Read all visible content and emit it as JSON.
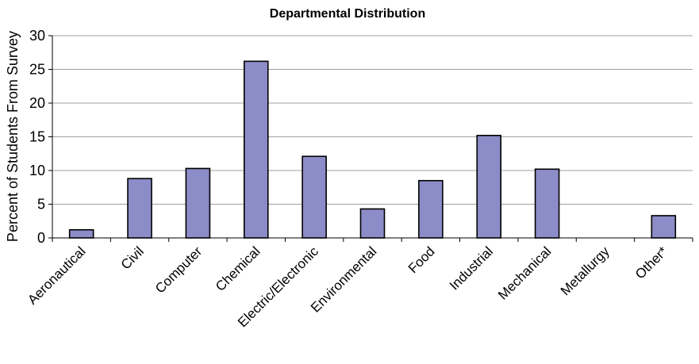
{
  "chart_data": {
    "type": "bar",
    "title": "Departmental Distribution",
    "xlabel": "",
    "ylabel": "Percent  of  Students From Survey",
    "categories": [
      "Aeronautical",
      "Civil",
      "Computer",
      "Chemical",
      "Electric/Electronic",
      "Environmental",
      "Food",
      "Industrial",
      "Mechanical",
      "Metallurgy",
      "Other*"
    ],
    "values": [
      1.2,
      8.8,
      10.3,
      26.2,
      12.1,
      4.3,
      8.5,
      15.2,
      10.2,
      0,
      3.3
    ],
    "ylim": [
      0,
      30
    ],
    "yticks": [
      0,
      5,
      10,
      15,
      20,
      25,
      30
    ],
    "grid": true,
    "legend": "none",
    "colors": {
      "bar_fill": "#8C8CC8",
      "bar_stroke": "#000000",
      "grid": "#A0A0A0"
    }
  }
}
